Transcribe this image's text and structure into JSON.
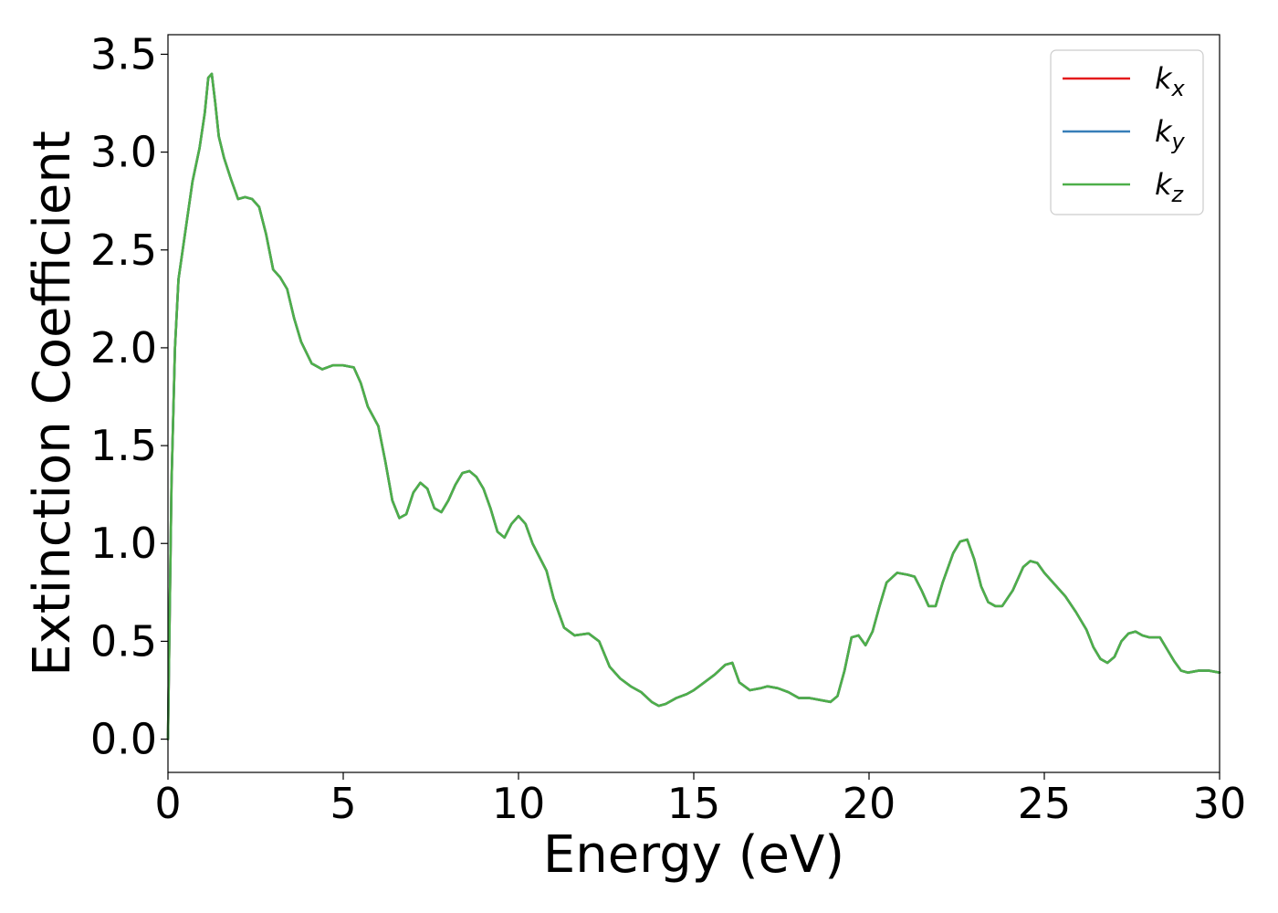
{
  "chart_data": {
    "type": "line",
    "title": "",
    "xlabel": "Energy (eV)",
    "ylabel": "Extinction Coefficient",
    "xlim": [
      0,
      30
    ],
    "ylim": [
      -0.17,
      3.6
    ],
    "xticks": [
      0,
      5,
      10,
      15,
      20,
      25,
      30
    ],
    "yticks": [
      0.0,
      0.5,
      1.0,
      1.5,
      2.0,
      2.5,
      3.0,
      3.5
    ],
    "xtick_labels": [
      "0",
      "5",
      "10",
      "15",
      "20",
      "25",
      "30"
    ],
    "ytick_labels": [
      "0.0",
      "0.5",
      "1.0",
      "1.5",
      "2.0",
      "2.5",
      "3.0",
      "3.5"
    ],
    "grid": false,
    "legend": {
      "position": "top-right"
    },
    "series": [
      {
        "name": "k_x",
        "label_base": "k",
        "label_sub": "x",
        "color": "#e41a1c",
        "x": [
          0,
          0.1,
          0.2,
          0.3,
          0.5,
          0.7,
          0.9,
          1.05,
          1.15,
          1.25,
          1.35,
          1.45,
          1.6,
          1.8,
          2.0,
          2.2,
          2.4,
          2.6,
          2.8,
          3.0,
          3.2,
          3.4,
          3.6,
          3.8,
          4.1,
          4.4,
          4.7,
          5.0,
          5.3,
          5.5,
          5.7,
          6.0,
          6.2,
          6.4,
          6.6,
          6.8,
          7.0,
          7.2,
          7.4,
          7.6,
          7.8,
          8.0,
          8.2,
          8.4,
          8.6,
          8.8,
          9.0,
          9.2,
          9.4,
          9.6,
          9.8,
          10.0,
          10.2,
          10.4,
          10.6,
          10.8,
          11.0,
          11.3,
          11.6,
          12.0,
          12.3,
          12.6,
          12.9,
          13.2,
          13.5,
          13.8,
          14.0,
          14.2,
          14.5,
          14.8,
          15.0,
          15.3,
          15.6,
          15.9,
          16.1,
          16.3,
          16.6,
          16.9,
          17.1,
          17.4,
          17.7,
          18.0,
          18.3,
          18.6,
          18.9,
          19.1,
          19.3,
          19.5,
          19.7,
          19.9,
          20.1,
          20.3,
          20.5,
          20.8,
          21.1,
          21.3,
          21.5,
          21.7,
          21.9,
          22.1,
          22.4,
          22.6,
          22.8,
          23.0,
          23.2,
          23.4,
          23.6,
          23.8,
          24.1,
          24.4,
          24.6,
          24.8,
          25.0,
          25.3,
          25.6,
          25.9,
          26.2,
          26.4,
          26.6,
          26.8,
          27.0,
          27.2,
          27.4,
          27.6,
          27.8,
          28.0,
          28.3,
          28.5,
          28.7,
          28.9,
          29.1,
          29.4,
          29.7,
          30.0
        ],
        "y": [
          0.0,
          1.3,
          2.0,
          2.35,
          2.6,
          2.85,
          3.02,
          3.2,
          3.38,
          3.4,
          3.25,
          3.08,
          2.97,
          2.86,
          2.76,
          2.77,
          2.76,
          2.72,
          2.58,
          2.4,
          2.36,
          2.3,
          2.15,
          2.03,
          1.92,
          1.89,
          1.91,
          1.91,
          1.9,
          1.82,
          1.7,
          1.6,
          1.42,
          1.22,
          1.13,
          1.15,
          1.26,
          1.31,
          1.28,
          1.18,
          1.16,
          1.22,
          1.3,
          1.36,
          1.37,
          1.34,
          1.28,
          1.18,
          1.06,
          1.03,
          1.1,
          1.14,
          1.1,
          1.0,
          0.93,
          0.86,
          0.72,
          0.57,
          0.53,
          0.54,
          0.5,
          0.37,
          0.31,
          0.27,
          0.24,
          0.19,
          0.17,
          0.18,
          0.21,
          0.23,
          0.25,
          0.29,
          0.33,
          0.38,
          0.39,
          0.29,
          0.25,
          0.26,
          0.27,
          0.26,
          0.24,
          0.21,
          0.21,
          0.2,
          0.19,
          0.22,
          0.35,
          0.52,
          0.53,
          0.48,
          0.55,
          0.68,
          0.8,
          0.85,
          0.84,
          0.83,
          0.76,
          0.68,
          0.68,
          0.8,
          0.95,
          1.01,
          1.02,
          0.92,
          0.78,
          0.7,
          0.68,
          0.68,
          0.76,
          0.88,
          0.91,
          0.9,
          0.85,
          0.79,
          0.73,
          0.65,
          0.56,
          0.47,
          0.41,
          0.39,
          0.42,
          0.5,
          0.54,
          0.55,
          0.53,
          0.52,
          0.52,
          0.46,
          0.4,
          0.35,
          0.34,
          0.35,
          0.35,
          0.34
        ]
      },
      {
        "name": "k_y",
        "label_base": "k",
        "label_sub": "y",
        "color": "#377eb8",
        "x": [
          0,
          0.1,
          0.2,
          0.3,
          0.5,
          0.7,
          0.9,
          1.05,
          1.15,
          1.25,
          1.35,
          1.45,
          1.6,
          1.8,
          2.0,
          2.2,
          2.4,
          2.6,
          2.8,
          3.0,
          3.2,
          3.4,
          3.6,
          3.8,
          4.1,
          4.4,
          4.7,
          5.0,
          5.3,
          5.5,
          5.7,
          6.0,
          6.2,
          6.4,
          6.6,
          6.8,
          7.0,
          7.2,
          7.4,
          7.6,
          7.8,
          8.0,
          8.2,
          8.4,
          8.6,
          8.8,
          9.0,
          9.2,
          9.4,
          9.6,
          9.8,
          10.0,
          10.2,
          10.4,
          10.6,
          10.8,
          11.0,
          11.3,
          11.6,
          12.0,
          12.3,
          12.6,
          12.9,
          13.2,
          13.5,
          13.8,
          14.0,
          14.2,
          14.5,
          14.8,
          15.0,
          15.3,
          15.6,
          15.9,
          16.1,
          16.3,
          16.6,
          16.9,
          17.1,
          17.4,
          17.7,
          18.0,
          18.3,
          18.6,
          18.9,
          19.1,
          19.3,
          19.5,
          19.7,
          19.9,
          20.1,
          20.3,
          20.5,
          20.8,
          21.1,
          21.3,
          21.5,
          21.7,
          21.9,
          22.1,
          22.4,
          22.6,
          22.8,
          23.0,
          23.2,
          23.4,
          23.6,
          23.8,
          24.1,
          24.4,
          24.6,
          24.8,
          25.0,
          25.3,
          25.6,
          25.9,
          26.2,
          26.4,
          26.6,
          26.8,
          27.0,
          27.2,
          27.4,
          27.6,
          27.8,
          28.0,
          28.3,
          28.5,
          28.7,
          28.9,
          29.1,
          29.4,
          29.7,
          30.0
        ],
        "y": [
          0.0,
          1.3,
          2.0,
          2.35,
          2.6,
          2.85,
          3.02,
          3.2,
          3.38,
          3.4,
          3.25,
          3.08,
          2.97,
          2.86,
          2.76,
          2.77,
          2.76,
          2.72,
          2.58,
          2.4,
          2.36,
          2.3,
          2.15,
          2.03,
          1.92,
          1.89,
          1.91,
          1.91,
          1.9,
          1.82,
          1.7,
          1.6,
          1.42,
          1.22,
          1.13,
          1.15,
          1.26,
          1.31,
          1.28,
          1.18,
          1.16,
          1.22,
          1.3,
          1.36,
          1.37,
          1.34,
          1.28,
          1.18,
          1.06,
          1.03,
          1.1,
          1.14,
          1.1,
          1.0,
          0.93,
          0.86,
          0.72,
          0.57,
          0.53,
          0.54,
          0.5,
          0.37,
          0.31,
          0.27,
          0.24,
          0.19,
          0.17,
          0.18,
          0.21,
          0.23,
          0.25,
          0.29,
          0.33,
          0.38,
          0.39,
          0.29,
          0.25,
          0.26,
          0.27,
          0.26,
          0.24,
          0.21,
          0.21,
          0.2,
          0.19,
          0.22,
          0.35,
          0.52,
          0.53,
          0.48,
          0.55,
          0.68,
          0.8,
          0.85,
          0.84,
          0.83,
          0.76,
          0.68,
          0.68,
          0.8,
          0.95,
          1.01,
          1.02,
          0.92,
          0.78,
          0.7,
          0.68,
          0.68,
          0.76,
          0.88,
          0.91,
          0.9,
          0.85,
          0.79,
          0.73,
          0.65,
          0.56,
          0.47,
          0.41,
          0.39,
          0.42,
          0.5,
          0.54,
          0.55,
          0.53,
          0.52,
          0.52,
          0.46,
          0.4,
          0.35,
          0.34,
          0.35,
          0.35,
          0.34
        ]
      },
      {
        "name": "k_z",
        "label_base": "k",
        "label_sub": "z",
        "color": "#4daf4a",
        "x": [
          0,
          0.1,
          0.2,
          0.3,
          0.5,
          0.7,
          0.9,
          1.05,
          1.15,
          1.25,
          1.35,
          1.45,
          1.6,
          1.8,
          2.0,
          2.2,
          2.4,
          2.6,
          2.8,
          3.0,
          3.2,
          3.4,
          3.6,
          3.8,
          4.1,
          4.4,
          4.7,
          5.0,
          5.3,
          5.5,
          5.7,
          6.0,
          6.2,
          6.4,
          6.6,
          6.8,
          7.0,
          7.2,
          7.4,
          7.6,
          7.8,
          8.0,
          8.2,
          8.4,
          8.6,
          8.8,
          9.0,
          9.2,
          9.4,
          9.6,
          9.8,
          10.0,
          10.2,
          10.4,
          10.6,
          10.8,
          11.0,
          11.3,
          11.6,
          12.0,
          12.3,
          12.6,
          12.9,
          13.2,
          13.5,
          13.8,
          14.0,
          14.2,
          14.5,
          14.8,
          15.0,
          15.3,
          15.6,
          15.9,
          16.1,
          16.3,
          16.6,
          16.9,
          17.1,
          17.4,
          17.7,
          18.0,
          18.3,
          18.6,
          18.9,
          19.1,
          19.3,
          19.5,
          19.7,
          19.9,
          20.1,
          20.3,
          20.5,
          20.8,
          21.1,
          21.3,
          21.5,
          21.7,
          21.9,
          22.1,
          22.4,
          22.6,
          22.8,
          23.0,
          23.2,
          23.4,
          23.6,
          23.8,
          24.1,
          24.4,
          24.6,
          24.8,
          25.0,
          25.3,
          25.6,
          25.9,
          26.2,
          26.4,
          26.6,
          26.8,
          27.0,
          27.2,
          27.4,
          27.6,
          27.8,
          28.0,
          28.3,
          28.5,
          28.7,
          28.9,
          29.1,
          29.4,
          29.7,
          30.0
        ],
        "y": [
          0.0,
          1.3,
          2.0,
          2.35,
          2.6,
          2.85,
          3.02,
          3.2,
          3.38,
          3.4,
          3.25,
          3.08,
          2.97,
          2.86,
          2.76,
          2.77,
          2.76,
          2.72,
          2.58,
          2.4,
          2.36,
          2.3,
          2.15,
          2.03,
          1.92,
          1.89,
          1.91,
          1.91,
          1.9,
          1.82,
          1.7,
          1.6,
          1.42,
          1.22,
          1.13,
          1.15,
          1.26,
          1.31,
          1.28,
          1.18,
          1.16,
          1.22,
          1.3,
          1.36,
          1.37,
          1.34,
          1.28,
          1.18,
          1.06,
          1.03,
          1.1,
          1.14,
          1.1,
          1.0,
          0.93,
          0.86,
          0.72,
          0.57,
          0.53,
          0.54,
          0.5,
          0.37,
          0.31,
          0.27,
          0.24,
          0.19,
          0.17,
          0.18,
          0.21,
          0.23,
          0.25,
          0.29,
          0.33,
          0.38,
          0.39,
          0.29,
          0.25,
          0.26,
          0.27,
          0.26,
          0.24,
          0.21,
          0.21,
          0.2,
          0.19,
          0.22,
          0.35,
          0.52,
          0.53,
          0.48,
          0.55,
          0.68,
          0.8,
          0.85,
          0.84,
          0.83,
          0.76,
          0.68,
          0.68,
          0.8,
          0.95,
          1.01,
          1.02,
          0.92,
          0.78,
          0.7,
          0.68,
          0.68,
          0.76,
          0.88,
          0.91,
          0.9,
          0.85,
          0.79,
          0.73,
          0.65,
          0.56,
          0.47,
          0.41,
          0.39,
          0.42,
          0.5,
          0.54,
          0.55,
          0.53,
          0.52,
          0.52,
          0.46,
          0.4,
          0.35,
          0.34,
          0.35,
          0.35,
          0.34
        ]
      }
    ]
  }
}
